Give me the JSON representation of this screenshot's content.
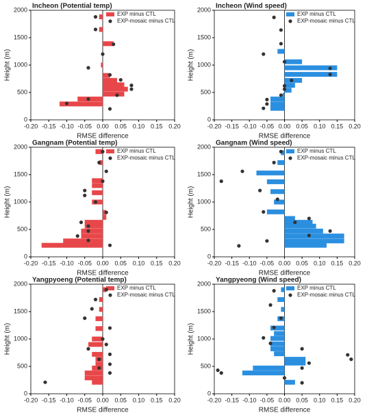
{
  "chart_data": [
    {
      "type": "hbar-scatter",
      "title": "Incheon (Potential temp)",
      "xlabel": "RMSE difference",
      "ylabel": "Height (m)",
      "xlim": [
        -0.2,
        0.2
      ],
      "ylim": [
        0,
        2000
      ],
      "xticks": [
        {
          "value": -0.2,
          "label": "-0.20"
        },
        {
          "value": -0.15,
          "label": "-0.15"
        },
        {
          "value": -0.1,
          "label": "-0.10"
        },
        {
          "value": -0.05,
          "label": "-0.05"
        },
        {
          "value": 0,
          "label": "0.00"
        },
        {
          "value": 0.05,
          "label": "0.05"
        },
        {
          "value": 0.1,
          "label": "0.10"
        },
        {
          "value": 0.15,
          "label": "0.15"
        },
        {
          "value": 0.2,
          "label": "0.20"
        }
      ],
      "yticks": [
        0,
        500,
        1000,
        1500,
        2000
      ],
      "series": [
        {
          "name": "EXP minus CTL",
          "type": "bar",
          "color": "#e8474a",
          "heights": [
            1880,
            1650,
            1390,
            1180,
            1000,
            810,
            720,
            640,
            560,
            470,
            380,
            290
          ],
          "values": [
            -0.01,
            -0.01,
            0.03,
            0.0,
            -0.005,
            0.02,
            0.04,
            0.06,
            0.07,
            0.06,
            -0.07,
            -0.12
          ]
        },
        {
          "name": "EXP-mosaic minus CTL",
          "type": "scatter",
          "color": "#333333",
          "heights": [
            1880,
            1650,
            1380,
            1200,
            950,
            820,
            730,
            630,
            560,
            450,
            380,
            300,
            200
          ],
          "values": [
            -0.02,
            -0.02,
            0.03,
            0.0,
            -0.04,
            0.02,
            0.05,
            0.08,
            0.08,
            0.04,
            -0.04,
            -0.1,
            0.02
          ]
        }
      ]
    },
    {
      "type": "hbar-scatter",
      "title": "Incheon (Wind speed)",
      "xlabel": "RMSE difference",
      "ylabel": "Height (m)",
      "xlim": [
        -0.2,
        0.2
      ],
      "ylim": [
        0,
        2000
      ],
      "xticks": [
        {
          "value": -0.2,
          "label": "-0.20"
        },
        {
          "value": -0.15,
          "label": "-0.15"
        },
        {
          "value": -0.1,
          "label": "-0.10"
        },
        {
          "value": -0.05,
          "label": "-0.05"
        },
        {
          "value": 0,
          "label": "0.00"
        },
        {
          "value": 0.05,
          "label": "0.05"
        },
        {
          "value": 0.1,
          "label": "0.10"
        },
        {
          "value": 0.15,
          "label": "0.15"
        },
        {
          "value": 0.2,
          "label": "0.20"
        }
      ],
      "yticks": [
        0,
        500,
        1000,
        1500,
        2000
      ],
      "series": [
        {
          "name": "EXP minus CTL",
          "type": "bar",
          "color": "#2b8fe0",
          "heights": [
            1250,
            1060,
            950,
            830,
            720,
            630,
            540,
            450,
            380,
            290,
            210
          ],
          "values": [
            -0.02,
            0.05,
            0.15,
            0.15,
            0.05,
            0.03,
            0.02,
            -0.005,
            -0.04,
            -0.04,
            -0.04
          ]
        },
        {
          "name": "EXP-mosaic minus CTL",
          "type": "scatter",
          "color": "#333333",
          "heights": [
            1870,
            1640,
            1390,
            1200,
            1060,
            940,
            830,
            720,
            620,
            560,
            450,
            370,
            290,
            210
          ],
          "values": [
            -0.03,
            -0.01,
            -0.01,
            -0.06,
            0.0,
            0.13,
            0.13,
            0.02,
            0.0,
            0.0,
            -0.01,
            -0.05,
            -0.05,
            -0.06
          ]
        }
      ]
    },
    {
      "type": "hbar-scatter",
      "title": "Gangnam (Potential temp)",
      "xlabel": "RMSE difference",
      "ylabel": "Height (m)",
      "xlim": [
        -0.2,
        0.2
      ],
      "ylim": [
        0,
        2000
      ],
      "xticks": [
        {
          "value": -0.2,
          "label": "-0.20"
        },
        {
          "value": -0.15,
          "label": "-0.15"
        },
        {
          "value": -0.1,
          "label": "-0.10"
        },
        {
          "value": -0.05,
          "label": "-0.05"
        },
        {
          "value": 0,
          "label": "0.00"
        },
        {
          "value": 0.05,
          "label": "0.05"
        },
        {
          "value": 0.1,
          "label": "0.10"
        },
        {
          "value": 0.15,
          "label": "0.15"
        },
        {
          "value": 0.2,
          "label": "0.20"
        }
      ],
      "yticks": [
        0,
        500,
        1000,
        1500,
        2000
      ],
      "series": [
        {
          "name": "EXP minus CTL",
          "type": "bar",
          "color": "#e8474a",
          "heights": [
            1920,
            1720,
            1390,
            1300,
            1170,
            1000,
            810,
            720,
            630,
            560,
            470,
            380,
            290,
            210
          ],
          "values": [
            -0.02,
            -0.01,
            -0.03,
            -0.03,
            -0.03,
            -0.03,
            0.01,
            0.01,
            -0.05,
            -0.05,
            -0.06,
            -0.06,
            -0.11,
            -0.17
          ]
        },
        {
          "name": "EXP-mosaic minus CTL",
          "type": "scatter",
          "color": "#333333",
          "heights": [
            1920,
            1720,
            1560,
            1380,
            1210,
            1120,
            1000,
            810,
            630,
            560,
            470,
            380,
            300,
            210
          ],
          "values": [
            0.0,
            -0.01,
            0.01,
            0.0,
            -0.05,
            -0.05,
            -0.02,
            0.01,
            -0.06,
            -0.04,
            -0.04,
            -0.07,
            -0.04,
            0.02
          ]
        }
      ]
    },
    {
      "type": "hbar-scatter",
      "title": "Gangnam (Wind speed)",
      "xlabel": "RMSE difference",
      "ylabel": "Height (m)",
      "xlim": [
        -0.2,
        0.2
      ],
      "ylim": [
        0,
        2000
      ],
      "xticks": [
        {
          "value": -0.2,
          "label": "-0.20"
        },
        {
          "value": -0.15,
          "label": "-0.15"
        },
        {
          "value": -0.1,
          "label": "-0.10"
        },
        {
          "value": -0.05,
          "label": "-0.05"
        },
        {
          "value": 0,
          "label": "0.00"
        },
        {
          "value": 0.05,
          "label": "0.05"
        },
        {
          "value": 0.1,
          "label": "0.10"
        },
        {
          "value": 0.15,
          "label": "0.15"
        },
        {
          "value": 0.2,
          "label": "0.20"
        }
      ],
      "yticks": [
        0,
        500,
        1000,
        1500,
        2000
      ],
      "series": [
        {
          "name": "EXP minus CTL",
          "type": "bar",
          "color": "#2b8fe0",
          "heights": [
            1900,
            1720,
            1530,
            1370,
            1190,
            1000,
            820,
            700,
            630,
            560,
            470,
            380,
            290,
            210
          ],
          "values": [
            -0.01,
            -0.02,
            -0.08,
            -0.05,
            -0.04,
            -0.03,
            -0.05,
            0.03,
            0.08,
            0.09,
            0.11,
            0.17,
            0.17,
            0.12
          ]
        },
        {
          "name": "EXP-mosaic minus CTL",
          "type": "scatter",
          "color": "#333333",
          "heights": [
            1920,
            1720,
            1560,
            1380,
            1210,
            1050,
            820,
            700,
            630,
            470,
            390,
            290,
            200
          ],
          "values": [
            -0.01,
            -0.03,
            -0.12,
            -0.18,
            -0.07,
            -0.02,
            -0.06,
            0.07,
            0.03,
            0.13,
            0.07,
            -0.05,
            -0.13
          ]
        }
      ]
    },
    {
      "type": "hbar-scatter",
      "title": "Yangpyoeng (Potential temp)",
      "xlabel": "RMSE difference",
      "ylabel": "Height (m)",
      "xlim": [
        -0.2,
        0.2
      ],
      "ylim": [
        0,
        2000
      ],
      "xticks": [
        {
          "value": -0.2,
          "label": "-0.20"
        },
        {
          "value": -0.15,
          "label": "-0.15"
        },
        {
          "value": -0.1,
          "label": "-0.10"
        },
        {
          "value": -0.05,
          "label": "-0.05"
        },
        {
          "value": 0,
          "label": "0.00"
        },
        {
          "value": 0.05,
          "label": "0.05"
        },
        {
          "value": 0.1,
          "label": "0.10"
        },
        {
          "value": 0.15,
          "label": "0.15"
        },
        {
          "value": 0.2,
          "label": "0.20"
        }
      ],
      "yticks": [
        0,
        500,
        1000,
        1500,
        2000
      ],
      "series": [
        {
          "name": "EXP minus CTL",
          "type": "bar",
          "color": "#e8474a",
          "heights": [
            1900,
            1720,
            1540,
            1370,
            1190,
            1000,
            900,
            720,
            630,
            540,
            470,
            380,
            290,
            210
          ],
          "values": [
            0.01,
            -0.01,
            -0.01,
            -0.02,
            -0.02,
            -0.03,
            -0.04,
            -0.03,
            -0.02,
            -0.02,
            -0.03,
            -0.05,
            -0.05,
            -0.03
          ]
        },
        {
          "name": "EXP-mosaic minus CTL",
          "type": "scatter",
          "color": "#333333",
          "heights": [
            1900,
            1720,
            1550,
            1380,
            1200,
            1000,
            900,
            820,
            720,
            630,
            540,
            470,
            380,
            210
          ],
          "values": [
            0.01,
            -0.02,
            -0.03,
            -0.05,
            0.02,
            0.0,
            0.01,
            -0.04,
            0.02,
            -0.01,
            0.02,
            -0.01,
            0.02,
            -0.16
          ]
        }
      ]
    },
    {
      "type": "hbar-scatter",
      "title": "Yangpyeong (Wind speed)",
      "xlabel": "RMSE difference",
      "ylabel": "Height (m)",
      "xlim": [
        -0.2,
        0.2
      ],
      "ylim": [
        0,
        2000
      ],
      "xticks": [
        {
          "value": -0.2,
          "label": "-0.20"
        },
        {
          "value": -0.15,
          "label": "-0.15"
        },
        {
          "value": -0.1,
          "label": "-0.10"
        },
        {
          "value": -0.05,
          "label": "-0.05"
        },
        {
          "value": 0,
          "label": "0.00"
        },
        {
          "value": 0.05,
          "label": "0.05"
        },
        {
          "value": 0.1,
          "label": "0.10"
        },
        {
          "value": 0.15,
          "label": "0.15"
        },
        {
          "value": 0.2,
          "label": "0.20"
        }
      ],
      "yticks": [
        0,
        500,
        1000,
        1500,
        2000
      ],
      "series": [
        {
          "name": "EXP minus CTL",
          "type": "bar",
          "color": "#2b8fe0",
          "heights": [
            1900,
            1720,
            1540,
            1370,
            1200,
            1100,
            1010,
            910,
            820,
            730,
            630,
            560,
            470,
            380,
            210
          ],
          "values": [
            -0.01,
            -0.02,
            -0.01,
            -0.02,
            -0.04,
            -0.03,
            -0.04,
            -0.04,
            -0.04,
            -0.03,
            0.06,
            0.06,
            -0.09,
            -0.12,
            0.03
          ]
        },
        {
          "name": "EXP-mosaic minus CTL",
          "type": "scatter",
          "color": "#333333",
          "heights": [
            1880,
            1620,
            1380,
            1210,
            1020,
            920,
            820,
            710,
            630,
            560,
            470,
            430,
            380,
            290,
            200
          ],
          "values": [
            -0.03,
            -0.04,
            -0.01,
            -0.03,
            -0.06,
            -0.04,
            0.05,
            0.18,
            0.19,
            0.07,
            0.05,
            -0.19,
            -0.18,
            0.0,
            0.05
          ]
        }
      ]
    }
  ]
}
